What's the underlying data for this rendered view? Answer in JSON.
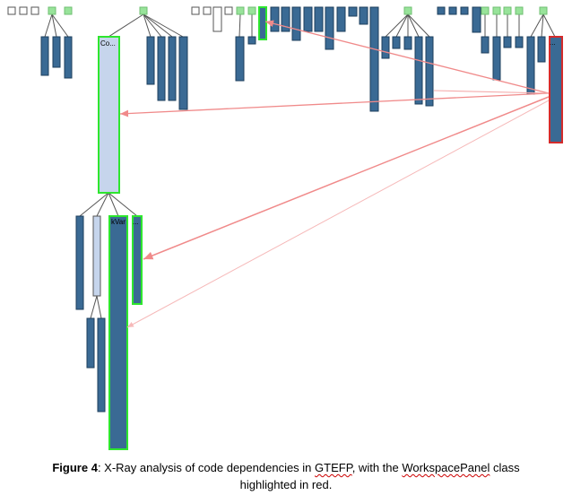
{
  "diagram": {
    "labels": {
      "container": "Co...",
      "kvar": "kVar",
      "ellipsis": "..."
    },
    "colors": {
      "class_fill": "#3a6a94",
      "class_stroke": "#1e3f5c",
      "container_fill": "#c6d5ec",
      "leaf_fill": "#98e39a",
      "leaf_stroke": "#6fbf72",
      "highlight_green": "#2ee62e",
      "highlight_red": "#d42b2b",
      "arrow": "#f08a8a"
    }
  },
  "caption": {
    "figure_label": "Figure 4",
    "text_1": ": X-Ray analysis of code dependencies in ",
    "gtefp": "GTEFP",
    "text_2": ", with the ",
    "workspace_panel": "WorkspacePanel",
    "text_3": " class",
    "line2": "highlighted in red."
  }
}
